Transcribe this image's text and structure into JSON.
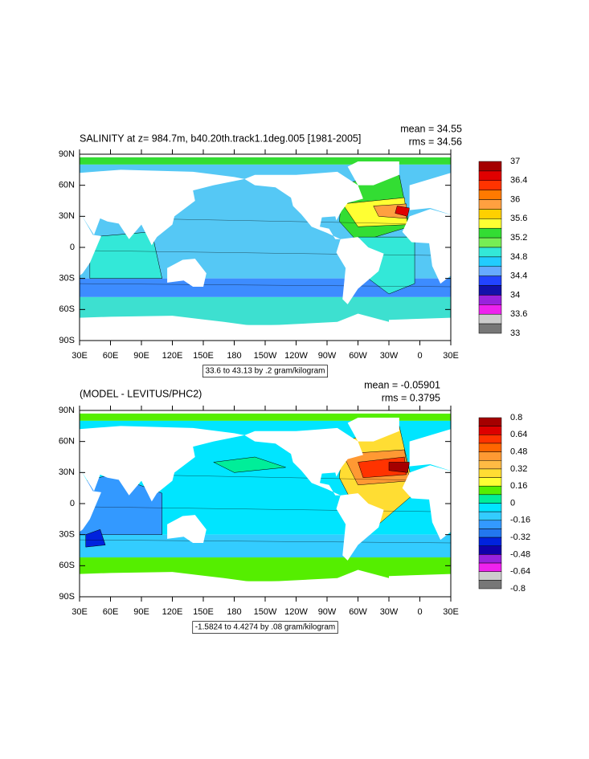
{
  "panels": [
    {
      "title": "SALINITY at z= 984.7m, b40.20th.track1.1deg.005 [1981-2005]",
      "mean": "mean = 34.55",
      "rms": "rms = 34.56",
      "contour_info": "33.6 to 43.13 by .2 gram/kilogram",
      "lat_labels": [
        "90N",
        "60N",
        "30N",
        "0",
        "30S",
        "60S",
        "90S"
      ],
      "lon_labels": [
        "30E",
        "60E",
        "90E",
        "120E",
        "150E",
        "180",
        "150W",
        "120W",
        "90W",
        "60W",
        "30W",
        "0",
        "30E"
      ],
      "colorbar_labels": [
        "37",
        "36.4",
        "36",
        "35.6",
        "35.2",
        "34.8",
        "34.4",
        "34",
        "33.6",
        "33"
      ]
    },
    {
      "title": "(MODEL - LEVITUS/PHC2)",
      "mean": "mean = -0.05901",
      "rms": "rms = 0.3795",
      "contour_info": "-1.5824 to 4.4274 by .08 gram/kilogram",
      "lat_labels": [
        "90N",
        "60N",
        "30N",
        "0",
        "30S",
        "60S",
        "90S"
      ],
      "lon_labels": [
        "30E",
        "60E",
        "90E",
        "120E",
        "150E",
        "180",
        "150W",
        "120W",
        "90W",
        "60W",
        "30W",
        "0",
        "30E"
      ],
      "colorbar_labels": [
        "0.8",
        "0.64",
        "0.48",
        "0.32",
        "0.16",
        "0",
        "-0.16",
        "-0.32",
        "-0.48",
        "-0.64",
        "-0.8"
      ]
    }
  ]
}
